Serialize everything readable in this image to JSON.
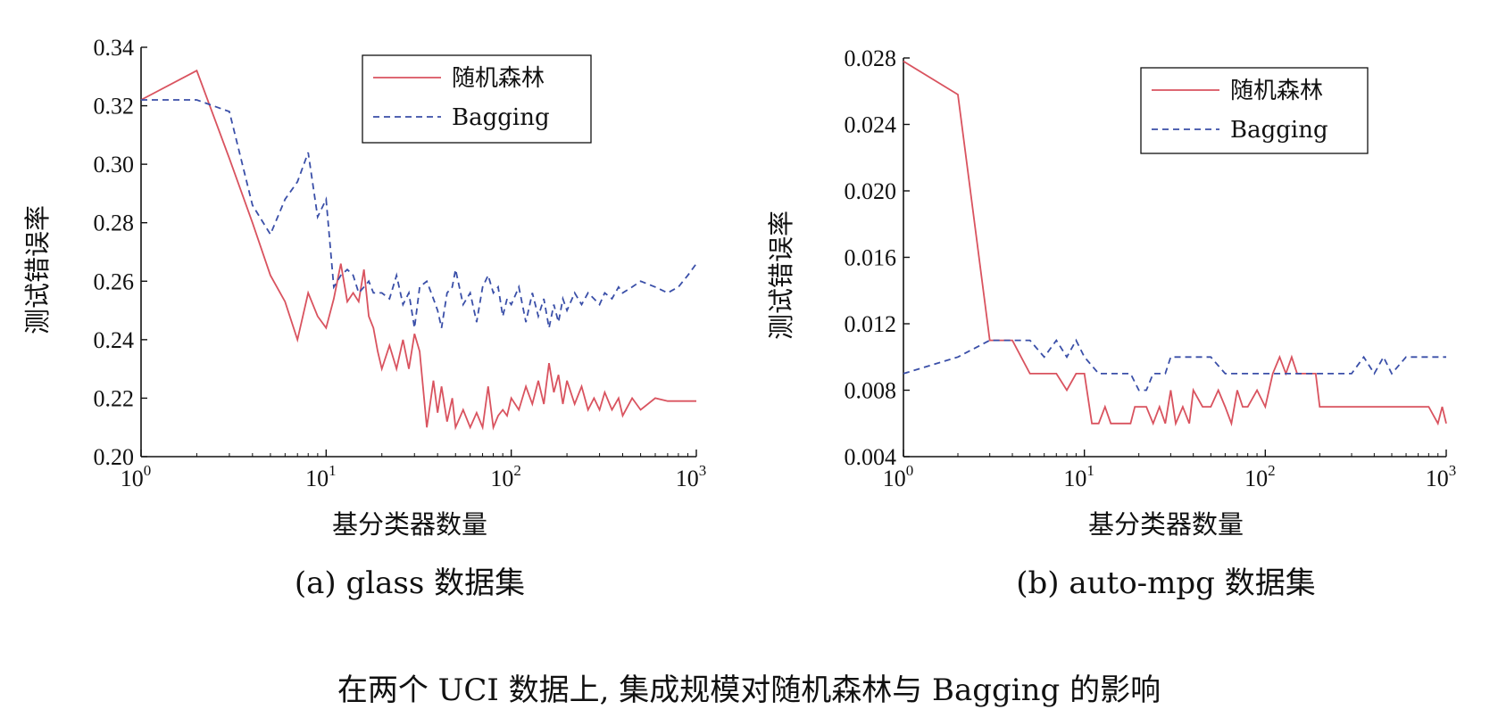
{
  "caption": "在两个 UCI 数据上, 集成规模对随机森林与 Bagging 的影响",
  "colors": {
    "rf": "#d9535f",
    "bagging": "#3a4fa8"
  },
  "chart_data": [
    {
      "type": "line",
      "subcaption": "(a) glass 数据集",
      "xlabel": "基分类器数量",
      "ylabel": "测试错误率",
      "xscale": "log",
      "xlim": [
        1,
        1000
      ],
      "ylim": [
        0.2,
        0.34
      ],
      "yticks": [
        "0.20",
        "0.22",
        "0.24",
        "0.26",
        "0.28",
        "0.30",
        "0.32",
        "0.34"
      ],
      "xticks": [
        {
          "base": "10",
          "exp": "0"
        },
        {
          "base": "10",
          "exp": "1"
        },
        {
          "base": "10",
          "exp": "2"
        },
        {
          "base": "10",
          "exp": "3"
        }
      ],
      "legend": "top-right",
      "series": [
        {
          "name": "随机森林",
          "style": "solid",
          "x": [
            1,
            2,
            3,
            4,
            5,
            6,
            7,
            8,
            9,
            10,
            11,
            12,
            13,
            14,
            15,
            16,
            17,
            18,
            19,
            20,
            22,
            24,
            26,
            28,
            30,
            32,
            35,
            38,
            40,
            42,
            45,
            48,
            50,
            55,
            60,
            65,
            70,
            75,
            80,
            85,
            90,
            95,
            100,
            110,
            120,
            130,
            140,
            150,
            160,
            170,
            180,
            190,
            200,
            220,
            240,
            260,
            280,
            300,
            320,
            350,
            380,
            400,
            450,
            500,
            600,
            700,
            800,
            900,
            1000
          ],
          "y": [
            0.322,
            0.332,
            0.302,
            0.28,
            0.262,
            0.253,
            0.24,
            0.256,
            0.248,
            0.244,
            0.254,
            0.266,
            0.253,
            0.256,
            0.253,
            0.264,
            0.248,
            0.244,
            0.236,
            0.23,
            0.238,
            0.23,
            0.24,
            0.23,
            0.242,
            0.236,
            0.21,
            0.226,
            0.215,
            0.224,
            0.212,
            0.22,
            0.21,
            0.216,
            0.21,
            0.215,
            0.21,
            0.224,
            0.21,
            0.214,
            0.216,
            0.214,
            0.22,
            0.216,
            0.224,
            0.218,
            0.226,
            0.218,
            0.232,
            0.222,
            0.228,
            0.218,
            0.226,
            0.218,
            0.224,
            0.216,
            0.22,
            0.216,
            0.222,
            0.216,
            0.22,
            0.214,
            0.22,
            0.216,
            0.22,
            0.219,
            0.219,
            0.219,
            0.219
          ]
        },
        {
          "name": "Bagging",
          "style": "dashed",
          "x": [
            1,
            2,
            3,
            4,
            5,
            6,
            7,
            8,
            9,
            10,
            11,
            12,
            13,
            14,
            15,
            16,
            17,
            18,
            19,
            20,
            22,
            24,
            26,
            28,
            30,
            32,
            35,
            38,
            40,
            42,
            45,
            48,
            50,
            55,
            60,
            65,
            70,
            75,
            80,
            85,
            90,
            95,
            100,
            110,
            120,
            130,
            140,
            150,
            160,
            170,
            180,
            190,
            200,
            220,
            240,
            260,
            280,
            300,
            320,
            350,
            380,
            400,
            450,
            500,
            600,
            700,
            800,
            900,
            1000
          ],
          "y": [
            0.322,
            0.322,
            0.318,
            0.286,
            0.276,
            0.288,
            0.294,
            0.304,
            0.282,
            0.288,
            0.258,
            0.262,
            0.264,
            0.262,
            0.256,
            0.258,
            0.26,
            0.256,
            0.256,
            0.256,
            0.254,
            0.262,
            0.252,
            0.256,
            0.244,
            0.258,
            0.26,
            0.254,
            0.25,
            0.244,
            0.256,
            0.258,
            0.264,
            0.252,
            0.256,
            0.246,
            0.258,
            0.262,
            0.256,
            0.258,
            0.248,
            0.254,
            0.252,
            0.258,
            0.246,
            0.256,
            0.248,
            0.254,
            0.244,
            0.252,
            0.246,
            0.254,
            0.25,
            0.256,
            0.252,
            0.256,
            0.254,
            0.252,
            0.256,
            0.254,
            0.258,
            0.256,
            0.258,
            0.26,
            0.258,
            0.256,
            0.258,
            0.262,
            0.266
          ]
        }
      ]
    },
    {
      "type": "line",
      "subcaption": "(b) auto-mpg 数据集",
      "xlabel": "基分类器数量",
      "ylabel": "测试错误率",
      "xscale": "log",
      "xlim": [
        1,
        1000
      ],
      "ylim": [
        0.004,
        0.028
      ],
      "yticks": [
        "0.004",
        "0.008",
        "0.012",
        "0.016",
        "0.020",
        "0.024",
        "0.028"
      ],
      "xticks": [
        {
          "base": "10",
          "exp": "0"
        },
        {
          "base": "10",
          "exp": "1"
        },
        {
          "base": "10",
          "exp": "2"
        },
        {
          "base": "10",
          "exp": "3"
        }
      ],
      "legend": "top-right",
      "series": [
        {
          "name": "随机森林",
          "style": "solid",
          "x": [
            1,
            2,
            3,
            4,
            5,
            6,
            7,
            8,
            9,
            10,
            11,
            12,
            13,
            14,
            15,
            16,
            17,
            18,
            19,
            20,
            22,
            24,
            26,
            28,
            30,
            32,
            35,
            38,
            40,
            45,
            50,
            55,
            60,
            65,
            70,
            75,
            80,
            90,
            100,
            110,
            120,
            130,
            140,
            150,
            160,
            170,
            180,
            190,
            200,
            250,
            300,
            350,
            400,
            500,
            600,
            700,
            800,
            900,
            950,
            1000
          ],
          "y": [
            0.0278,
            0.0258,
            0.011,
            0.011,
            0.009,
            0.009,
            0.009,
            0.008,
            0.009,
            0.009,
            0.006,
            0.006,
            0.007,
            0.006,
            0.006,
            0.006,
            0.006,
            0.006,
            0.007,
            0.007,
            0.007,
            0.006,
            0.007,
            0.006,
            0.008,
            0.006,
            0.007,
            0.006,
            0.008,
            0.007,
            0.007,
            0.008,
            0.007,
            0.006,
            0.008,
            0.007,
            0.007,
            0.008,
            0.007,
            0.009,
            0.01,
            0.009,
            0.01,
            0.009,
            0.009,
            0.009,
            0.009,
            0.009,
            0.007,
            0.007,
            0.007,
            0.007,
            0.007,
            0.007,
            0.007,
            0.007,
            0.007,
            0.006,
            0.007,
            0.006
          ]
        },
        {
          "name": "Bagging",
          "style": "dashed",
          "x": [
            1,
            2,
            3,
            4,
            5,
            6,
            7,
            8,
            9,
            10,
            12,
            14,
            16,
            18,
            20,
            22,
            24,
            26,
            28,
            30,
            35,
            40,
            45,
            50,
            60,
            70,
            80,
            90,
            100,
            120,
            140,
            160,
            180,
            200,
            250,
            300,
            350,
            400,
            450,
            500,
            600,
            700,
            800,
            900,
            1000
          ],
          "y": [
            0.009,
            0.01,
            0.011,
            0.011,
            0.011,
            0.01,
            0.011,
            0.01,
            0.011,
            0.01,
            0.009,
            0.009,
            0.009,
            0.009,
            0.008,
            0.008,
            0.009,
            0.009,
            0.009,
            0.01,
            0.01,
            0.01,
            0.01,
            0.01,
            0.009,
            0.009,
            0.009,
            0.009,
            0.009,
            0.009,
            0.009,
            0.009,
            0.009,
            0.009,
            0.009,
            0.009,
            0.01,
            0.009,
            0.01,
            0.009,
            0.01,
            0.01,
            0.01,
            0.01,
            0.01
          ]
        }
      ]
    }
  ]
}
